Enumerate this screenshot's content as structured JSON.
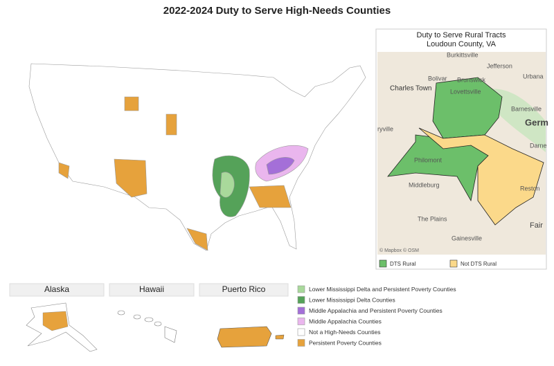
{
  "title": "2022-2024 Duty to Serve High-Needs Counties",
  "legend": [
    {
      "label": "Lower Mississippi Delta and Persistent Poverty Counties",
      "color": "#a9d99b"
    },
    {
      "label": "Lower Mississippi Delta Counties",
      "color": "#55a259"
    },
    {
      "label": "Middle Appalachia and Persistent Poverty Counties",
      "color": "#a46fd8"
    },
    {
      "label": "Middle Appalachia Counties",
      "color": "#eab6ee"
    },
    {
      "label": "Not a High-Needs Counties",
      "color": "#ffffff"
    },
    {
      "label": "Persistent Poverty Counties",
      "color": "#e6a23c"
    }
  ],
  "insets": [
    "Alaska",
    "Hawaii",
    "Puerto Rico"
  ],
  "tract_map": {
    "title": [
      "Duty to Serve Rural Tracts",
      "Loudoun County, VA"
    ],
    "places": [
      "Burkittsville",
      "Jefferson",
      "Bolivar",
      "Brunswick",
      "Urbana",
      "Charles Town",
      "Lovettsville",
      "Barnesville",
      "Germ",
      "Darne",
      "ryville",
      "Philomont",
      "Middleburg",
      "Reston",
      "The Plains",
      "Fair",
      "Gainesville"
    ],
    "attribution": "© Mapbox © OSM",
    "legend": [
      {
        "label": "DTS Rural",
        "color": "#6cbf6a"
      },
      {
        "label": "Not DTS Rural",
        "color": "#fbd98a"
      }
    ]
  }
}
